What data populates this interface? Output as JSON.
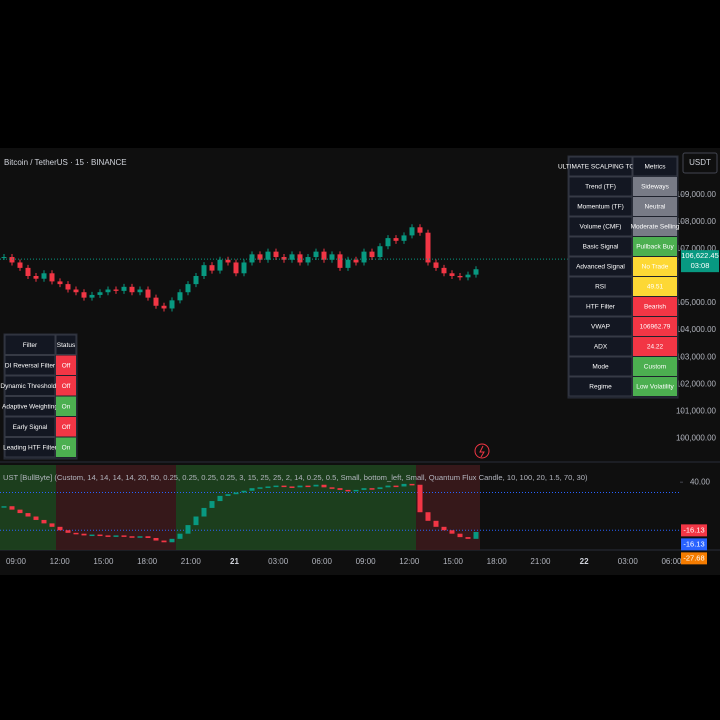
{
  "header": {
    "title": "Bitcoin / TetherUS · 15 · BINANCE",
    "currency": "USDT"
  },
  "price_axis": {
    "ylim": [
      99200,
      110730
    ],
    "ticks": [
      {
        "value": 109000,
        "label": "109,000.00"
      },
      {
        "value": 108000,
        "label": "108,000.00"
      },
      {
        "value": 107000,
        "label": "107,000.00"
      },
      {
        "value": 105000,
        "label": "105,000.00"
      },
      {
        "value": 104000,
        "label": "104,000.00"
      },
      {
        "value": 103000,
        "label": "103,000.00"
      },
      {
        "value": 102000,
        "label": "102,000.00"
      },
      {
        "value": 101000,
        "label": "101,000.00"
      },
      {
        "value": 100000,
        "label": "100,000.00"
      }
    ]
  },
  "current_price": {
    "value": 106622.45,
    "label": "106,622.45",
    "countdown": "03:08",
    "color": "#089981"
  },
  "candles": {
    "up_color": "#089981",
    "down_color": "#f23645",
    "closes": [
      106700,
      106500,
      106300,
      106000,
      105900,
      106100,
      105800,
      105700,
      105500,
      105400,
      105200,
      105300,
      105400,
      105500,
      105450,
      105600,
      105400,
      105500,
      105200,
      104900,
      104800,
      105100,
      105400,
      105700,
      106000,
      106400,
      106200,
      106600,
      106500,
      106100,
      106500,
      106800,
      106600,
      106900,
      106700,
      106600,
      106800,
      106500,
      106700,
      106900,
      106600,
      106800,
      106300,
      106600,
      106500,
      106900,
      106700,
      107100,
      107400,
      107300,
      107500,
      107800,
      107600,
      106500,
      106300,
      106100,
      106000,
      105950,
      106050,
      106250
    ]
  },
  "indicator": {
    "legend": "UST [BullByte] (Custom, 14, 14, 14, 14, 20, 50, 0.25, 0.25, 0.25, 0.25, 3, 15, 25, 25, 2, 14, 0.25, 0.5, Small, bottom_left, Small, Quantum Flux Candle, 10, 100, 20, 1.5, 70, 30)",
    "ylim": [
      -39,
      60
    ],
    "ticks": [
      {
        "value": 40,
        "label": "40.00"
      }
    ],
    "levels": [
      28,
      -16
    ],
    "values": [
      12,
      8,
      4,
      0,
      -4,
      -8,
      -12,
      -16,
      -19,
      -20,
      -22,
      -21,
      -22,
      -23,
      -22,
      -23,
      -24,
      -23,
      -25,
      -28,
      -30,
      -26,
      -20,
      -10,
      0,
      10,
      18,
      24,
      26,
      28,
      30,
      33,
      34,
      35,
      36,
      35,
      34,
      36,
      35,
      37,
      34,
      33,
      31,
      30,
      31,
      33,
      32,
      34,
      36,
      35,
      38,
      37,
      5,
      -5,
      -12,
      -16,
      -20,
      -24,
      -26,
      -18
    ],
    "zones": [
      {
        "start": 0,
        "end": 6,
        "color": "#1e4620"
      },
      {
        "start": 7,
        "end": 21,
        "color": "#3d1a1c"
      },
      {
        "start": 22,
        "end": 51,
        "color": "#1e4620"
      },
      {
        "start": 52,
        "end": 59,
        "color": "#3d1a1c"
      }
    ],
    "markers": [
      {
        "value": -16.13,
        "label": "-16.13",
        "color": "#f23645"
      },
      {
        "value": -16.13,
        "label": "-16.13",
        "color": "#2962ff"
      },
      {
        "value": -27.68,
        "label": "-27.68",
        "color": "#f57c00"
      }
    ]
  },
  "time_axis": [
    "09:00",
    "12:00",
    "15:00",
    "18:00",
    "21:00",
    "21",
    "03:00",
    "06:00",
    "09:00",
    "12:00",
    "15:00",
    "18:00",
    "21:00",
    "22",
    "03:00",
    "06:00"
  ],
  "metrics_table": {
    "header": [
      "ULTIMATE SCALPING TOOL",
      "Metrics"
    ],
    "rows": [
      {
        "label": "Trend (TF)",
        "value": "Sideways",
        "color": "#787b86"
      },
      {
        "label": "Momentum (TF)",
        "value": "Neutral",
        "color": "#787b86"
      },
      {
        "label": "Volume (CMF)",
        "value": "Moderate Selling",
        "color": "#787b86"
      },
      {
        "label": "Basic Signal",
        "value": "Pullback Buy",
        "color": "#4caf50"
      },
      {
        "label": "Advanced Signal",
        "value": "No Trade",
        "color": "#fdd835"
      },
      {
        "label": "RSI",
        "value": "49.51",
        "color": "#fdd835"
      },
      {
        "label": "HTF Filter",
        "value": "Bearish",
        "color": "#f23645"
      },
      {
        "label": "VWAP",
        "value": "106962.79",
        "color": "#f23645"
      },
      {
        "label": "ADX",
        "value": "24.22",
        "color": "#f23645"
      },
      {
        "label": "Mode",
        "value": "Custom",
        "color": "#4caf50"
      },
      {
        "label": "Regime",
        "value": "Low Volatility",
        "color": "#4caf50"
      }
    ]
  },
  "filter_table": {
    "header": [
      "Filter",
      "Status"
    ],
    "rows": [
      {
        "label": "DI Reversal Filter",
        "value": "Off",
        "color": "#f23645"
      },
      {
        "label": "Dynamic Thresholds",
        "value": "Off",
        "color": "#f23645"
      },
      {
        "label": "Adaptive Weighting",
        "value": "On",
        "color": "#4caf50"
      },
      {
        "label": "Early Signal",
        "value": "Off",
        "color": "#f23645"
      },
      {
        "label": "Leading HTF Filter",
        "value": "On",
        "color": "#4caf50"
      }
    ]
  }
}
